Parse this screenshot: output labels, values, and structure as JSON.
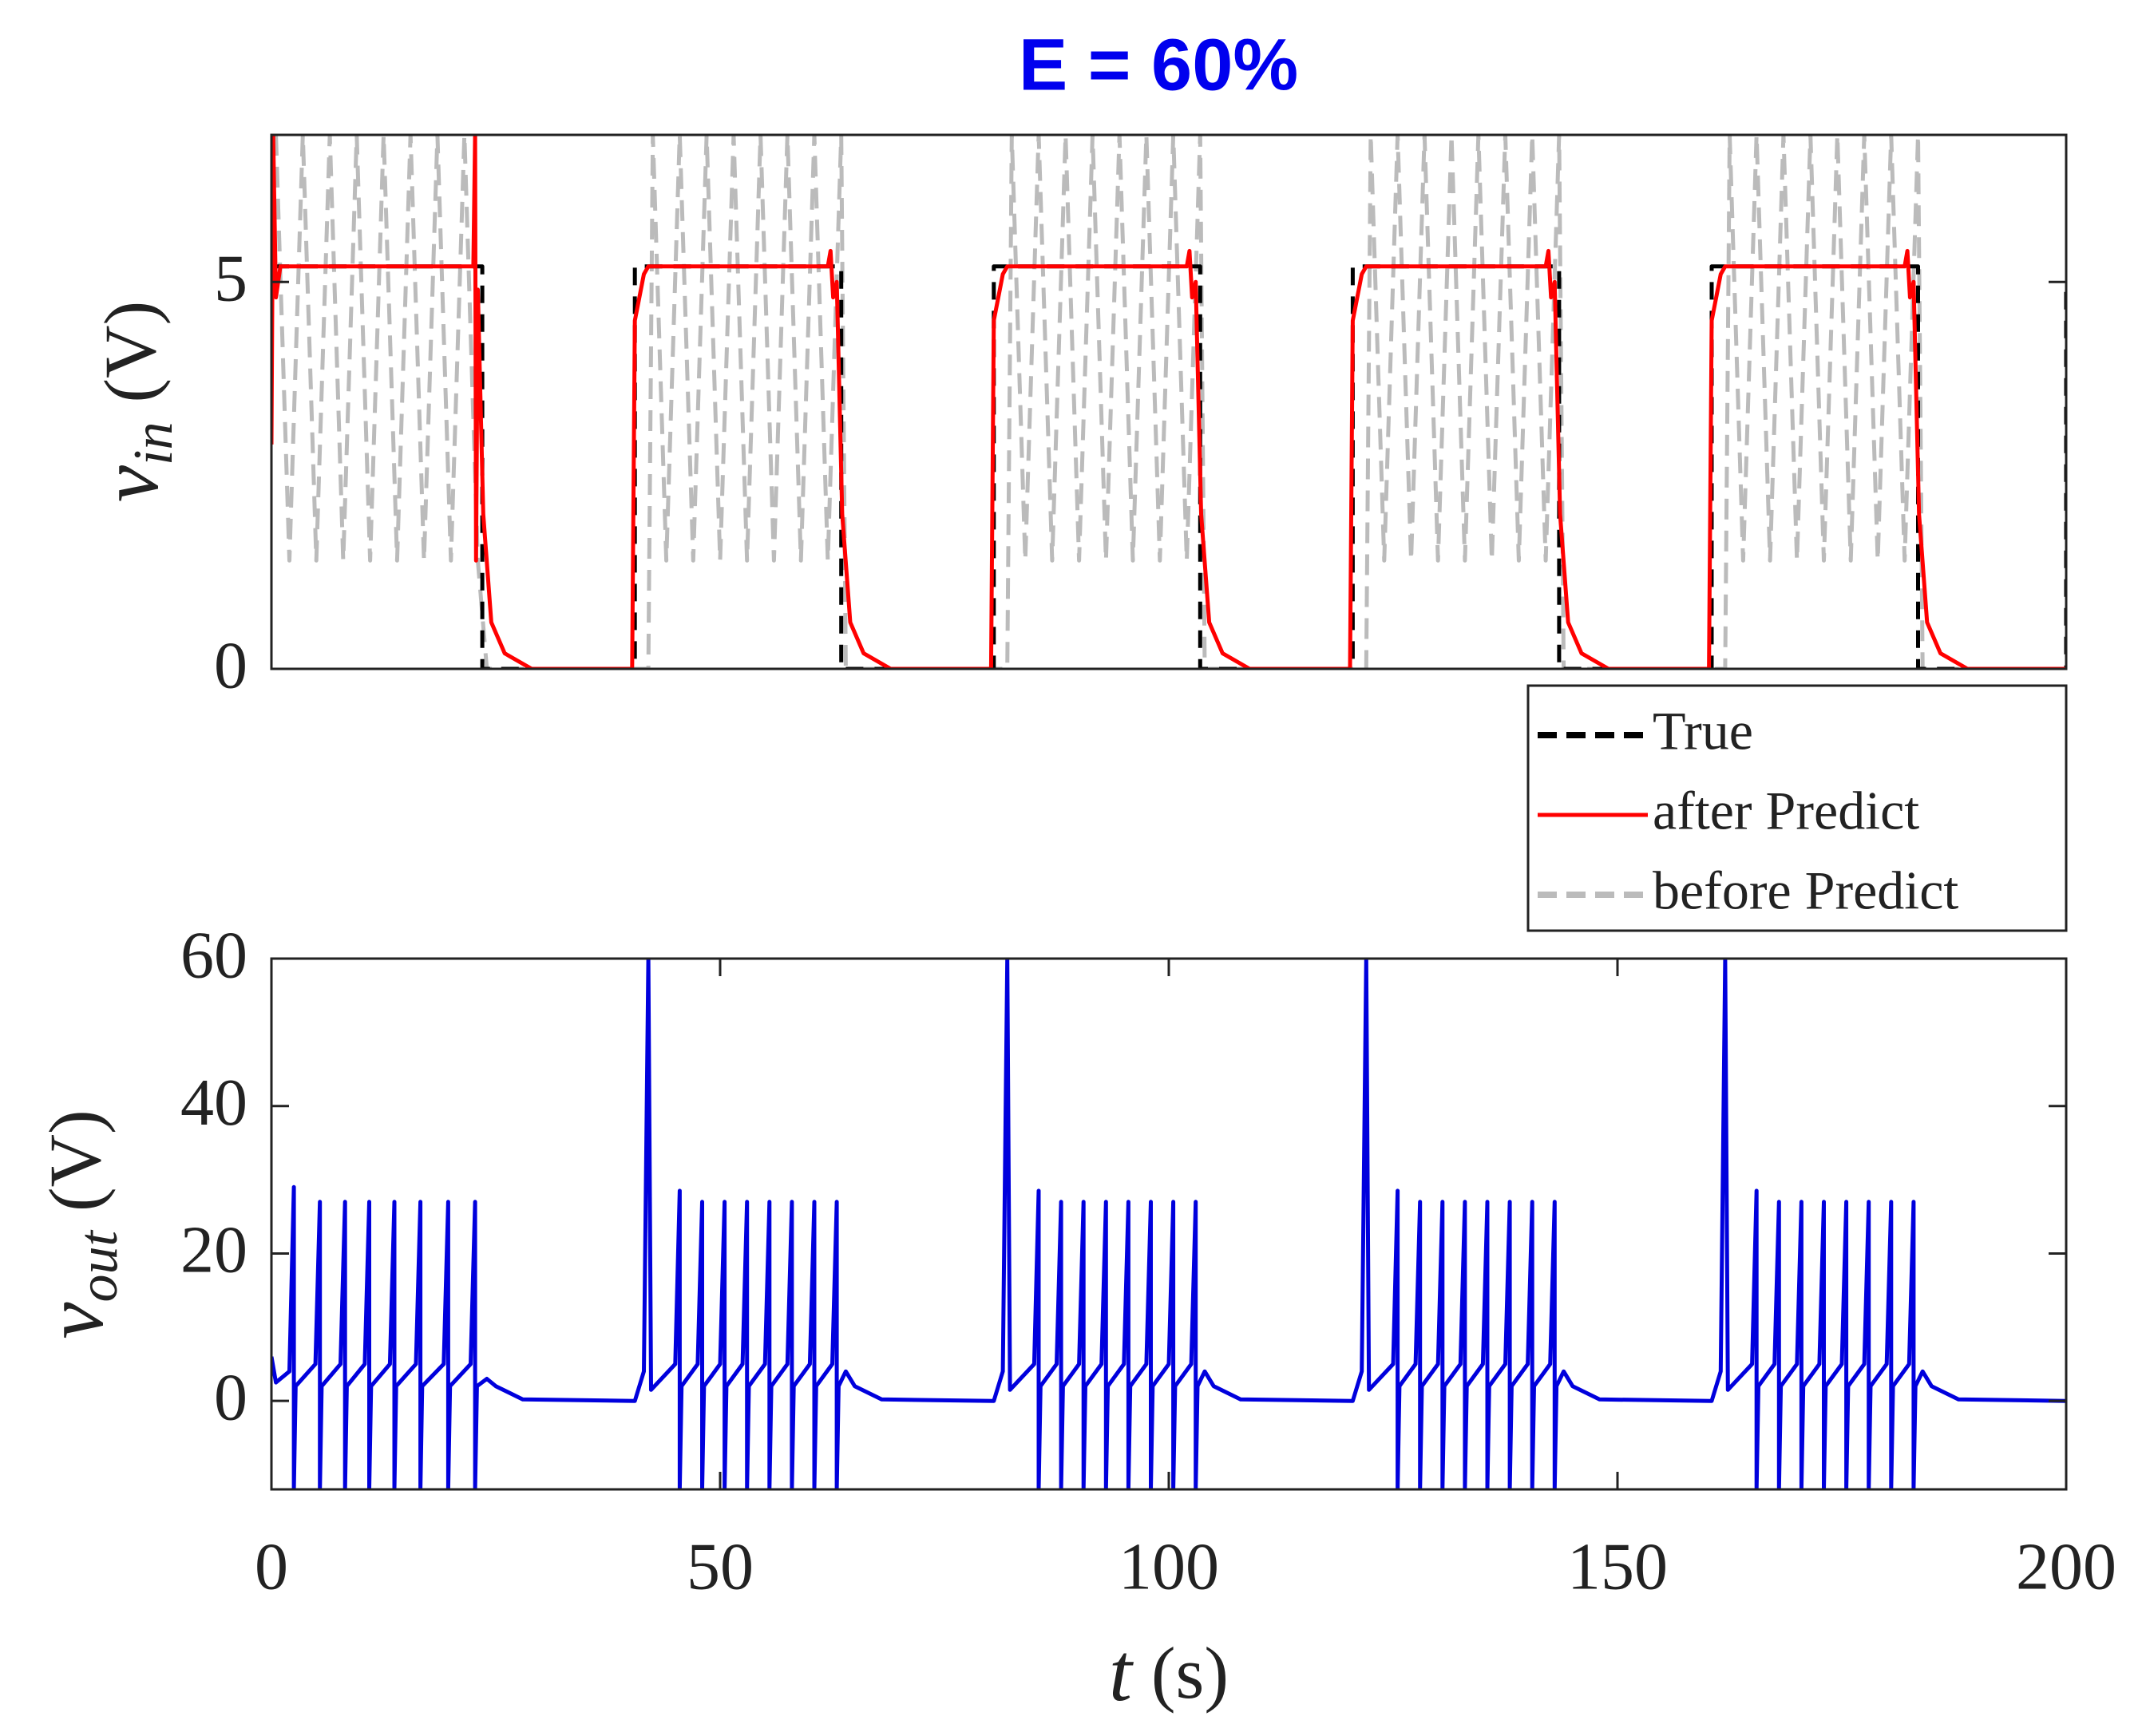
{
  "chart_data": [
    {
      "type": "line",
      "title": "E = 60%",
      "title_color": "#0000ee",
      "ylabel": {
        "symbol": "v",
        "subscript": "in",
        "unit": "(V)"
      },
      "xlim": [
        0,
        200
      ],
      "ylim": [
        0,
        6.9
      ],
      "yticks": [
        0,
        5
      ],
      "legend": "southeastoutside",
      "series": [
        {
          "name": "True",
          "color": "#000000",
          "style": "dashed",
          "x": [
            0,
            23.5,
            23.5,
            40.5,
            40.5,
            63.5,
            63.5,
            80.5,
            80.5,
            103.5,
            103.5,
            120.5,
            120.5,
            143.5,
            143.5,
            160.5,
            160.5,
            183.5,
            183.5,
            200,
            200
          ],
          "values": [
            5.2,
            5.2,
            0,
            0,
            5.2,
            5.2,
            0,
            0,
            5.2,
            5.2,
            0,
            0,
            5.2,
            5.2,
            0,
            0,
            5.2,
            5.2,
            0,
            0,
            5
          ]
        },
        {
          "name": "after Predict",
          "color": "#ff0000",
          "style": "solid",
          "x": [
            0,
            0.2,
            0.5,
            1,
            22.5,
            22.7,
            22.8,
            23,
            23.6,
            24.5,
            26,
            29,
            40.2,
            40.5,
            41.5,
            42,
            62,
            62.3,
            62.6,
            63,
            63.6,
            64.5,
            66,
            69,
            80.2,
            80.5,
            81.5,
            82,
            102,
            102.3,
            102.6,
            103,
            103.6,
            104.5,
            106,
            109,
            120.2,
            120.5,
            121.5,
            122,
            142,
            142.3,
            142.6,
            143,
            143.6,
            144.5,
            146,
            149,
            160.2,
            160.5,
            161.5,
            162,
            182,
            182.3,
            182.6,
            183,
            183.6,
            184.5,
            186,
            189,
            200
          ],
          "values": [
            2.9,
            6.9,
            4.8,
            5.2,
            5.2,
            6.9,
            1.4,
            4.9,
            2,
            0.6,
            0.2,
            0,
            0,
            4.5,
            5.1,
            5.2,
            5.2,
            5.4,
            4.8,
            5,
            2,
            0.6,
            0.2,
            0,
            0,
            4.5,
            5.1,
            5.2,
            5.2,
            5.4,
            4.8,
            5,
            2,
            0.6,
            0.2,
            0,
            0,
            4.5,
            5.1,
            5.2,
            5.2,
            5.4,
            4.8,
            5,
            2,
            0.6,
            0.2,
            0,
            0,
            4.5,
            5.1,
            5.2,
            5.2,
            5.4,
            4.8,
            5,
            2,
            0.6,
            0.2,
            0,
            0
          ]
        },
        {
          "name": "before Predict",
          "color": "#bbbbbb",
          "style": "dashed",
          "x": [
            0.5,
            2,
            3.5,
            5,
            6.5,
            8,
            9.5,
            11,
            12.5,
            14,
            15.5,
            17,
            18.5,
            20,
            21.5,
            23,
            24,
            42,
            42.5,
            44,
            45.5,
            47,
            48.5,
            50,
            51.5,
            53,
            54.5,
            56,
            57.5,
            59,
            60.5,
            62,
            63.5,
            64,
            82,
            82.5,
            84,
            85.5,
            87,
            88.5,
            90,
            91.5,
            93,
            94.5,
            96,
            97.5,
            99,
            100.5,
            102,
            103.5,
            104,
            122,
            122.5,
            124,
            125.5,
            127,
            128.5,
            130,
            131.5,
            133,
            134.5,
            136,
            137.5,
            139,
            140.5,
            142,
            143.5,
            144,
            162,
            162.5,
            164,
            165.5,
            167,
            168.5,
            170,
            171.5,
            173,
            174.5,
            176,
            177.5,
            179,
            180.5,
            182,
            183.5,
            184,
            200
          ],
          "values": [
            6.9,
            1.4,
            6.9,
            1.4,
            6.9,
            1.4,
            6.9,
            1.4,
            6.9,
            1.4,
            6.9,
            1.4,
            6.9,
            1.4,
            6.9,
            1.4,
            0,
            0,
            6.9,
            1.4,
            6.9,
            1.4,
            6.9,
            1.4,
            6.9,
            1.4,
            6.9,
            1.4,
            6.9,
            1.4,
            6.9,
            1.4,
            6.9,
            0,
            0,
            6.9,
            1.4,
            6.9,
            1.4,
            6.9,
            1.4,
            6.9,
            1.4,
            6.9,
            1.4,
            6.9,
            1.4,
            6.9,
            1.4,
            6.9,
            0,
            0,
            6.9,
            1.4,
            6.9,
            1.4,
            6.9,
            1.4,
            6.9,
            1.4,
            6.9,
            1.4,
            6.9,
            1.4,
            6.9,
            1.4,
            6.9,
            0,
            0,
            6.9,
            1.4,
            6.9,
            1.4,
            6.9,
            1.4,
            6.9,
            1.4,
            6.9,
            1.4,
            6.9,
            1.4,
            6.9,
            1.4,
            6.9,
            0,
            0
          ]
        }
      ]
    },
    {
      "type": "line",
      "ylabel": {
        "symbol": "v",
        "subscript": "out",
        "unit": "(V)"
      },
      "xlabel": {
        "symbol": "t",
        "unit": "(s)"
      },
      "xlim": [
        0,
        200
      ],
      "xticks": [
        0,
        50,
        100,
        150,
        200
      ],
      "ylim": [
        -12,
        60
      ],
      "yticks": [
        0,
        20,
        40,
        60
      ],
      "series": [
        {
          "color": "#0000dd",
          "style": "solid",
          "x": [
            0,
            0.5,
            2,
            2.5,
            2.5,
            2.7,
            4.9,
            5.4,
            5.4,
            5.6,
            7.7,
            8.2,
            8.2,
            8.4,
            10.4,
            10.9,
            10.9,
            11.1,
            13.2,
            13.7,
            13.7,
            13.9,
            16.1,
            16.6,
            16.6,
            16.8,
            19.2,
            19.7,
            19.7,
            19.9,
            22.2,
            22.7,
            22.7,
            22.9,
            24,
            25,
            28,
            40.5,
            41.5,
            42,
            42.3,
            45,
            45.5,
            45.5,
            45.7,
            47.5,
            48,
            48,
            48.2,
            50,
            50.5,
            50.5,
            50.7,
            52.5,
            53,
            53,
            53.2,
            55,
            55.5,
            55.5,
            55.7,
            57.5,
            58,
            58,
            58.2,
            60,
            60.5,
            60.5,
            60.7,
            62.5,
            63,
            63,
            63.2,
            64,
            65,
            68,
            80.5,
            81.5,
            82,
            82.3,
            85,
            85.5,
            85.5,
            85.7,
            87.5,
            88,
            88,
            88.2,
            90,
            90.5,
            90.5,
            90.7,
            92.5,
            93,
            93,
            93.2,
            95,
            95.5,
            95.5,
            95.7,
            97.5,
            98,
            98,
            98.2,
            100,
            100.5,
            100.5,
            100.7,
            102.5,
            103,
            103,
            103.2,
            104,
            105,
            108,
            120.5,
            121.5,
            122,
            122.3,
            125,
            125.5,
            125.5,
            125.7,
            127.5,
            128,
            128,
            128.2,
            130,
            130.5,
            130.5,
            130.7,
            132.5,
            133,
            133,
            133.2,
            135,
            135.5,
            135.5,
            135.7,
            137.5,
            138,
            138,
            138.2,
            140,
            140.5,
            140.5,
            140.7,
            142.5,
            143,
            143,
            143.2,
            144,
            145,
            148,
            160.5,
            161.5,
            162,
            162.3,
            165,
            165.5,
            165.5,
            165.7,
            167.5,
            168,
            168,
            168.2,
            170,
            170.5,
            170.5,
            170.7,
            172.5,
            173,
            173,
            173.2,
            175,
            175.5,
            175.5,
            175.7,
            177.5,
            178,
            178,
            178.2,
            180,
            180.5,
            180.5,
            180.7,
            182.5,
            183,
            183,
            183.2,
            184,
            185,
            188,
            200
          ],
          "values": [
            6,
            2.5,
            4,
            29,
            -12,
            2,
            5,
            27,
            -12,
            2,
            5,
            27,
            -12,
            2,
            5,
            27,
            -12,
            2,
            5,
            27,
            -12,
            2,
            5,
            27,
            -12,
            2,
            5,
            27,
            -12,
            2,
            5,
            27,
            -12,
            2,
            3,
            2,
            0.2,
            0,
            4,
            60,
            1.5,
            5,
            28.5,
            -12,
            2,
            5,
            27,
            -12,
            2,
            5,
            27,
            -12,
            2,
            5,
            27,
            -12,
            2,
            5,
            27,
            -12,
            2,
            5,
            27,
            -12,
            2,
            5,
            27,
            -12,
            2,
            5,
            27,
            -12,
            2,
            4,
            2,
            0.2,
            0,
            4,
            60,
            1.5,
            5,
            28.5,
            -12,
            2,
            5,
            27,
            -12,
            2,
            5,
            27,
            -12,
            2,
            5,
            27,
            -12,
            2,
            5,
            27,
            -12,
            2,
            5,
            27,
            -12,
            2,
            5,
            27,
            -12,
            2,
            5,
            27,
            -12,
            2,
            4,
            2,
            0.2,
            0,
            4,
            60,
            1.5,
            5,
            28.5,
            -12,
            2,
            5,
            27,
            -12,
            2,
            5,
            27,
            -12,
            2,
            5,
            27,
            -12,
            2,
            5,
            27,
            -12,
            2,
            5,
            27,
            -12,
            2,
            5,
            27,
            -12,
            2,
            5,
            27,
            -12,
            2,
            4,
            2,
            0.2,
            0,
            4,
            60,
            1.5,
            5,
            28.5,
            -12,
            2,
            5,
            27,
            -12,
            2,
            5,
            27,
            -12,
            2,
            5,
            27,
            -12,
            2,
            5,
            27,
            -12,
            2,
            5,
            27,
            -12,
            2,
            5,
            27,
            -12,
            2,
            5,
            27,
            -12,
            2,
            4,
            2,
            0.2,
            0
          ]
        }
      ]
    }
  ]
}
